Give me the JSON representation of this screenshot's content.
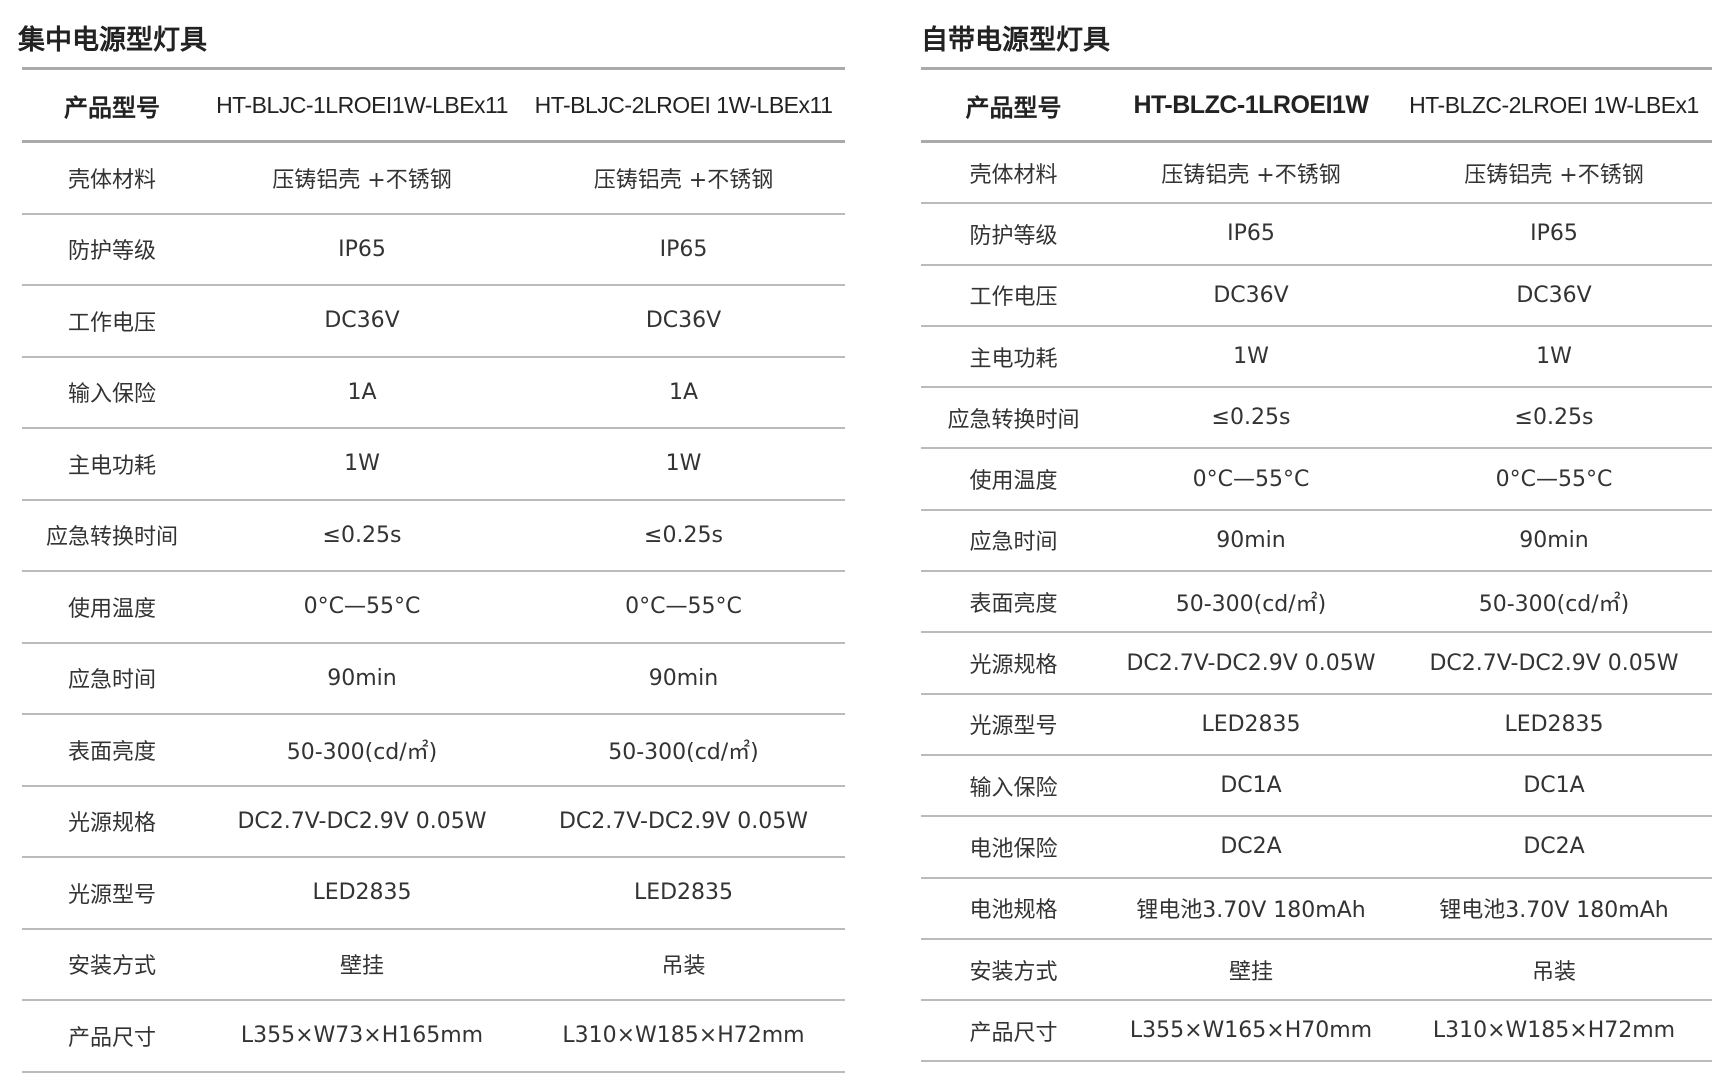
{
  "left": {
    "title": "集中电源型灯具",
    "header": [
      "产品型号",
      "HT-BLJC-1LROEI1W-LBEx11",
      "HT-BLJC-2LROEI 1W-LBEx11"
    ],
    "rows": [
      [
        "壳体材料",
        "压铸铝壳 +不锈钢",
        "压铸铝壳 +不锈钢"
      ],
      [
        "防护等级",
        "IP65",
        "IP65"
      ],
      [
        "工作电压",
        "DC36V",
        "DC36V"
      ],
      [
        "输入保险",
        "1A",
        "1A"
      ],
      [
        "主电功耗",
        "1W",
        "1W"
      ],
      [
        "应急转换时间",
        "≤0.25s",
        "≤0.25s"
      ],
      [
        "使用温度",
        "0°C—55°C",
        "0°C—55°C"
      ],
      [
        "应急时间",
        "90min",
        "90min"
      ],
      [
        "表面亮度",
        "50-300(cd/㎡)",
        "50-300(cd/㎡)"
      ],
      [
        "光源规格",
        "DC2.7V-DC2.9V 0.05W",
        "DC2.7V-DC2.9V 0.05W"
      ],
      [
        "光源型号",
        "LED2835",
        "LED2835"
      ],
      [
        "安装方式",
        "壁挂",
        "吊装"
      ],
      [
        "产品尺寸",
        "L355×W73×H165mm",
        "L310×W185×H72mm"
      ]
    ]
  },
  "right": {
    "title": "自带电源型灯具",
    "header": [
      "产品型号",
      "HT-BLZC-1LROEI1W",
      "HT-BLZC-2LROEI 1W-LBEx1"
    ],
    "rows": [
      [
        "壳体材料",
        "压铸铝壳 +不锈钢",
        "压铸铝壳 +不锈钢"
      ],
      [
        "防护等级",
        "IP65",
        "IP65"
      ],
      [
        "工作电压",
        "DC36V",
        "DC36V"
      ],
      [
        "主电功耗",
        "1W",
        "1W"
      ],
      [
        "应急转换时间",
        "≤0.25s",
        "≤0.25s"
      ],
      [
        "使用温度",
        "0°C—55°C",
        "0°C—55°C"
      ],
      [
        "应急时间",
        "90min",
        "90min"
      ],
      [
        "表面亮度",
        "50-300(cd/㎡)",
        "50-300(cd/㎡)"
      ],
      [
        "光源规格",
        "DC2.7V-DC2.9V 0.05W",
        "DC2.7V-DC2.9V 0.05W"
      ],
      [
        "光源型号",
        "LED2835",
        "LED2835"
      ],
      [
        "输入保险",
        "DC1A",
        "DC1A"
      ],
      [
        "电池保险",
        "DC2A",
        "DC2A"
      ],
      [
        "电池规格",
        "锂电池3.70V 180mAh",
        "锂电池3.70V 180mAh"
      ],
      [
        "安装方式",
        "壁挂",
        "吊装"
      ],
      [
        "产品尺寸",
        "L355×W165×H70mm",
        "L310×W185×H72mm"
      ]
    ]
  }
}
